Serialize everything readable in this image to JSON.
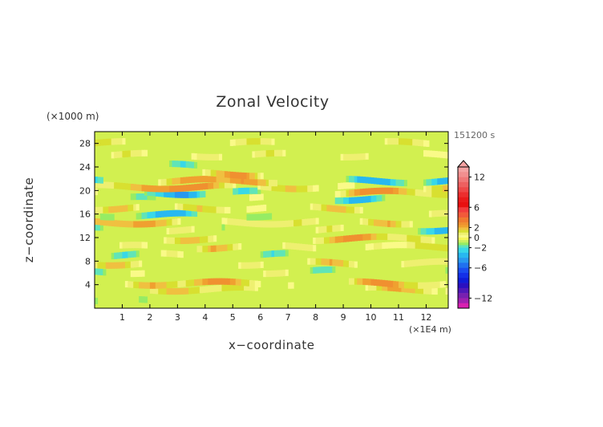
{
  "chart_data": {
    "type": "heatmap",
    "title": "Zonal Velocity",
    "xlabel": "x−coordinate",
    "ylabel": "z−coordinate",
    "x_unit_label": "(×1E4 m)",
    "y_unit_label": "(×1000 m)",
    "time_label": "151200 s",
    "xlim": [
      0,
      12.8
    ],
    "ylim": [
      0,
      30
    ],
    "x_ticks": [
      "1",
      "2",
      "3",
      "4",
      "5",
      "6",
      "7",
      "8",
      "9",
      "10",
      "11",
      "12"
    ],
    "y_ticks": [
      "4",
      "8",
      "12",
      "16",
      "20",
      "24",
      "28"
    ],
    "colorbar": {
      "tick_labels": [
        "12",
        "6",
        "2",
        "0",
        "−2",
        "−6",
        "−12"
      ],
      "tick_values": [
        12,
        6,
        2,
        0,
        -2,
        -6,
        -12
      ],
      "extend": "max",
      "levels": [
        14,
        13,
        12,
        11,
        10,
        9,
        8,
        7,
        6,
        5,
        4,
        3,
        2.5,
        2,
        1.5,
        1,
        0.5,
        0,
        -0.5,
        -1,
        -1.5,
        -2,
        -3,
        -4,
        -5,
        -6,
        -7,
        -8,
        -9,
        -10,
        -11,
        -12,
        -13,
        -14
      ],
      "colors": [
        "#f5a3a3",
        "#f28f8f",
        "#f07878",
        "#ee6060",
        "#ee4848",
        "#ec2e2e",
        "#ea1a1a",
        "#e81010",
        "#f23c3c",
        "#f25a3a",
        "#f07a30",
        "#f09030",
        "#f0a030",
        "#f0c040",
        "#d8e030",
        "#eef070",
        "#fafa88",
        "#f6f65a",
        "#c8f060",
        "#96ec64",
        "#60e4b8",
        "#38d8e8",
        "#28b8f0",
        "#2898f0",
        "#2070f0",
        "#1a4cf0",
        "#1430e8",
        "#101cd8",
        "#2a10c0",
        "#5018b8",
        "#7820b0",
        "#a020b0",
        "#d820b0",
        "#f820a8"
      ]
    },
    "bands": [
      {
        "z": 1.2,
        "values": [
          -1,
          -1,
          0,
          0,
          0,
          0,
          0,
          0,
          -1,
          0,
          0,
          0,
          0
        ]
      },
      {
        "z": 3.2,
        "values": [
          0,
          0,
          1,
          2,
          2,
          1,
          0,
          0,
          0,
          1,
          2,
          2,
          1
        ]
      },
      {
        "z": 4.2,
        "values": [
          0,
          1,
          2,
          2,
          3,
          2,
          1,
          0,
          0,
          2,
          3,
          2,
          0
        ]
      },
      {
        "z": 6.2,
        "values": [
          -1,
          0,
          1,
          0,
          -1,
          0,
          1,
          0,
          -1,
          0,
          1,
          0,
          -1
        ]
      },
      {
        "z": 7.6,
        "values": [
          1,
          2,
          1,
          0,
          0,
          1,
          0,
          1,
          2,
          1,
          0,
          1,
          2
        ]
      },
      {
        "z": 9.0,
        "values": [
          0,
          -1,
          0,
          1,
          0,
          0,
          -1,
          0,
          0,
          0,
          -1,
          0,
          0
        ]
      },
      {
        "z": 10.4,
        "values": [
          1,
          1,
          0,
          0,
          2,
          1,
          0,
          1,
          1,
          0,
          1,
          2,
          1
        ]
      },
      {
        "z": 11.8,
        "values": [
          0,
          0,
          1,
          2,
          1,
          0,
          0,
          1,
          2,
          3,
          2,
          1,
          0
        ]
      },
      {
        "z": 13.4,
        "values": [
          -2,
          0,
          0,
          1,
          0,
          -1,
          0,
          0,
          1,
          0,
          0,
          -1,
          -2
        ]
      },
      {
        "z": 14.6,
        "values": [
          2,
          3,
          2,
          1,
          0,
          1,
          2,
          1,
          0,
          1,
          2,
          1,
          0
        ]
      },
      {
        "z": 15.8,
        "values": [
          0,
          -1,
          -2,
          -2,
          0,
          0,
          -1,
          0,
          0,
          -1,
          0,
          0,
          1
        ]
      },
      {
        "z": 17.0,
        "values": [
          1,
          2,
          0,
          1,
          2,
          1,
          0,
          1,
          2,
          1,
          0,
          0,
          1
        ]
      },
      {
        "z": 18.6,
        "values": [
          0,
          0,
          -1,
          0,
          0,
          0,
          1,
          0,
          -1,
          -2,
          -1,
          0,
          0
        ]
      },
      {
        "z": 19.6,
        "values": [
          1,
          0,
          -2,
          -3,
          0,
          -2,
          1,
          0,
          1,
          3,
          3,
          2,
          1
        ]
      },
      {
        "z": 20.6,
        "values": [
          2,
          1,
          3,
          4,
          2,
          1,
          1,
          2,
          1,
          0,
          0,
          0,
          2
        ]
      },
      {
        "z": 21.6,
        "values": [
          -2,
          0,
          1,
          2,
          3,
          3,
          1,
          0,
          0,
          -2,
          -2,
          -1,
          -2
        ]
      },
      {
        "z": 22.8,
        "values": [
          0,
          0,
          0,
          0,
          2,
          3,
          0,
          0,
          0,
          0,
          0,
          0,
          0
        ]
      },
      {
        "z": 24.2,
        "values": [
          0,
          0,
          0,
          -1,
          0,
          0,
          0,
          0,
          0,
          0,
          0,
          0,
          0
        ]
      },
      {
        "z": 26.0,
        "values": [
          0,
          1,
          1,
          0,
          1,
          1,
          1,
          0,
          0,
          1,
          0,
          0,
          1
        ]
      },
      {
        "z": 28.0,
        "values": [
          1,
          1,
          0,
          0,
          1,
          1,
          1,
          0,
          0,
          0,
          1,
          1,
          1
        ]
      }
    ]
  }
}
